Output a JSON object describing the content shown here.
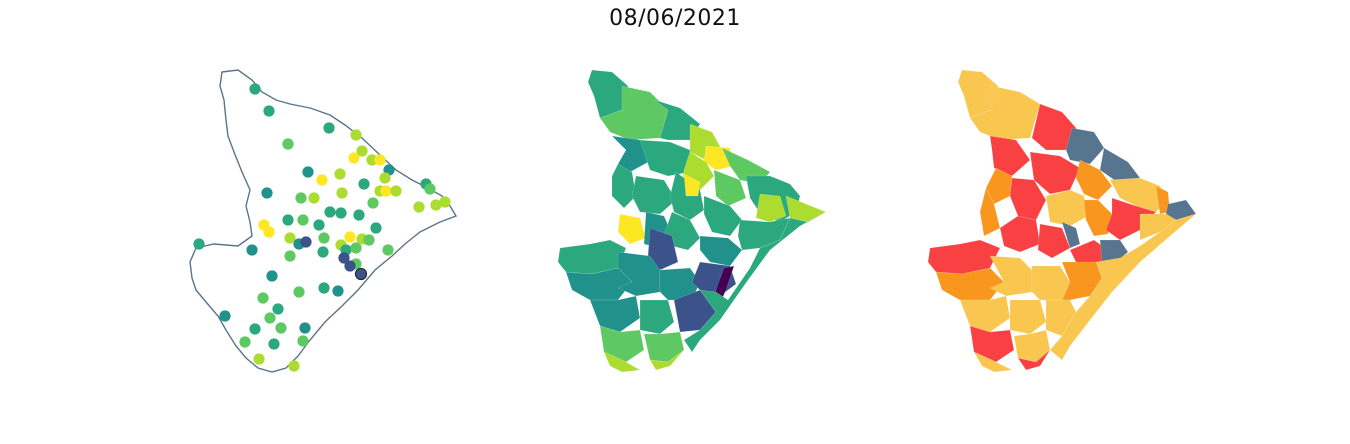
{
  "figure": {
    "title": "08/06/2021"
  },
  "colors": {
    "outline": "#5b7489",
    "viridis": [
      "#440154",
      "#3b528b",
      "#21918c",
      "#2ca87f",
      "#5ec962",
      "#addc30",
      "#fde725"
    ],
    "categorical": {
      "gray_blue": "#587590",
      "red": "#f94144",
      "orange": "#f8961e",
      "yellow": "#f9c74f"
    }
  },
  "panels": [
    {
      "name": "stations-points",
      "type": "scatter-map"
    },
    {
      "name": "municipalities-choropleth-continuous",
      "type": "choropleth",
      "palette": "viridis"
    },
    {
      "name": "municipalities-choropleth-categories",
      "type": "choropleth",
      "palette": "categorical"
    }
  ]
}
